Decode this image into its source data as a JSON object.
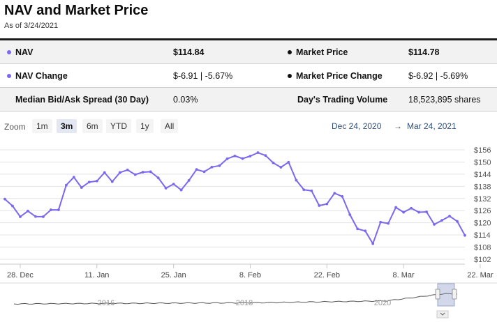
{
  "header": {
    "title": "NAV and Market Price",
    "as_of": "As of 3/24/2021"
  },
  "stats": {
    "nav_label": "NAV",
    "nav_value": "$114.84",
    "market_price_label": "Market Price",
    "market_price_value": "$114.78",
    "nav_change_label": "NAV Change",
    "nav_change_value": "$-6.91 | -5.67%",
    "market_price_change_label": "Market Price Change",
    "market_price_change_value": "$-6.92 | -5.69%",
    "spread_label": "Median Bid/Ask Spread (30 Day)",
    "spread_value": "0.03%",
    "volume_label": "Day's Trading Volume",
    "volume_value": "18,523,895 shares"
  },
  "zoom": {
    "label": "Zoom",
    "buttons": [
      "1m",
      "3m",
      "6m",
      "YTD",
      "1y",
      "All"
    ],
    "active": "3m",
    "range_from": "Dec 24, 2020",
    "range_arrow": "→",
    "range_to": "Mar 24, 2021"
  },
  "colors": {
    "series": "#7b68ee",
    "navigator_line": "#555555",
    "navigator_fill": "#7f8fbf"
  },
  "chart_data": {
    "type": "line",
    "title": "NAV and Market Price",
    "xlabel": "",
    "ylabel": "",
    "ylim": [
      102,
      156
    ],
    "y_ticks": [
      "$156",
      "$150",
      "$144",
      "$138",
      "$132",
      "$126",
      "$120",
      "$114",
      "$108",
      "$102"
    ],
    "y_tick_values": [
      156,
      150,
      144,
      138,
      132,
      126,
      120,
      114,
      108,
      102
    ],
    "x_tick_labels": [
      "28. Dec",
      "11. Jan",
      "25. Jan",
      "8. Feb",
      "22. Feb",
      "8. Mar",
      "22. Mar"
    ],
    "x_tick_index": [
      2,
      12,
      22,
      32,
      42,
      52,
      62
    ],
    "series": [
      {
        "name": "NAV",
        "values": [
          131.7,
          128.3,
          123.0,
          125.8,
          123.1,
          123.0,
          126.4,
          126.4,
          138.6,
          142.5,
          137.4,
          140.1,
          140.6,
          144.8,
          140.3,
          144.8,
          146.1,
          143.8,
          145.0,
          145.2,
          142.2,
          137.1,
          139.1,
          136.2,
          140.9,
          146.3,
          145.2,
          147.5,
          148.2,
          151.6,
          153.0,
          151.7,
          152.9,
          154.6,
          153.2,
          149.6,
          147.4,
          149.9,
          141.0,
          136.3,
          135.8,
          128.5,
          129.3,
          134.6,
          133.0,
          124.0,
          117.0,
          116.0,
          109.7,
          120.3,
          119.7,
          127.6,
          125.2,
          127.2,
          125.2,
          125.4,
          119.2,
          121.2,
          123.3,
          120.7,
          113.8
        ]
      }
    ],
    "navigator": {
      "x_labels": [
        "2016",
        "2018",
        "2020"
      ]
    }
  }
}
